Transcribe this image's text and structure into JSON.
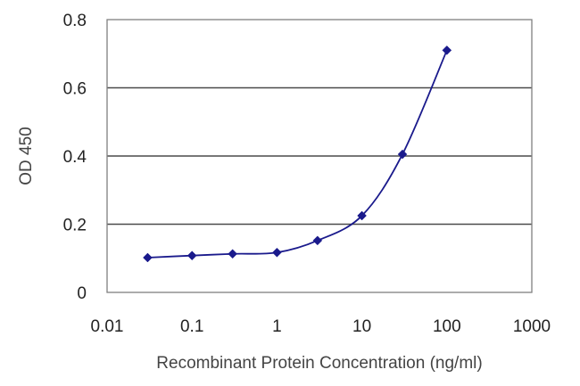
{
  "chart_data": {
    "type": "line",
    "title": "",
    "xlabel": "Recombinant Protein Concentration (ng/ml)",
    "ylabel": "OD 450",
    "xscale": "log",
    "xlim": [
      0.01,
      1000
    ],
    "ylim": [
      0,
      0.8
    ],
    "x_ticks": [
      0.01,
      0.1,
      1,
      10,
      100,
      1000
    ],
    "x_tick_labels": [
      "0.01",
      "0.1",
      "1",
      "10",
      "100",
      "1000"
    ],
    "y_ticks": [
      0,
      0.2,
      0.4,
      0.6,
      0.8
    ],
    "y_tick_labels": [
      "0",
      "0.2",
      "0.4",
      "0.6",
      "0.8"
    ],
    "grid": "horizontal",
    "legend": "none",
    "series": [
      {
        "x": [
          0.03,
          0.1,
          0.3,
          1,
          3,
          10,
          30,
          100
        ],
        "values": [
          0.102,
          0.108,
          0.113,
          0.117,
          0.152,
          0.225,
          0.405,
          0.71
        ],
        "color": "#1a1a8c",
        "marker": "diamond"
      }
    ]
  }
}
